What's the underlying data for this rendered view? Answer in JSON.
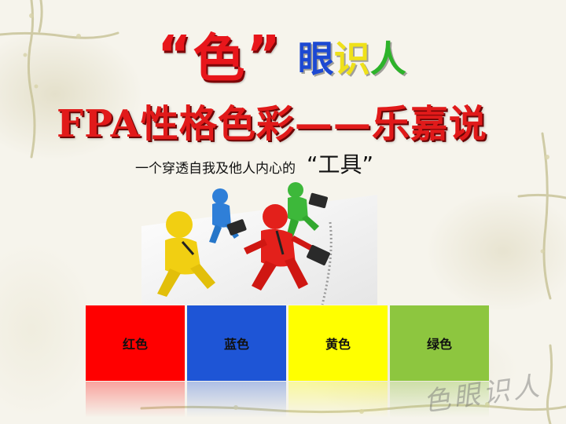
{
  "title": {
    "open_quote": "“",
    "highlight_char": "色",
    "close_quote": "”",
    "eye_chars": [
      "眼",
      "识",
      "人"
    ]
  },
  "headline": "FPA性格色彩——乐嘉说",
  "subtitle": {
    "text": "一个穿透自我及他人内心的",
    "tool_word": "“工具”"
  },
  "color_blocks": [
    {
      "label": "红色",
      "color": "#ff0000"
    },
    {
      "label": "蓝色",
      "color": "#1e55d6"
    },
    {
      "label": "黄色",
      "color": "#ffff00"
    },
    {
      "label": "绿色",
      "color": "#8dc63f"
    }
  ],
  "watermark": "色眼识人",
  "figures": [
    "yellow-figure",
    "blue-figure",
    "red-figure",
    "green-figure"
  ]
}
